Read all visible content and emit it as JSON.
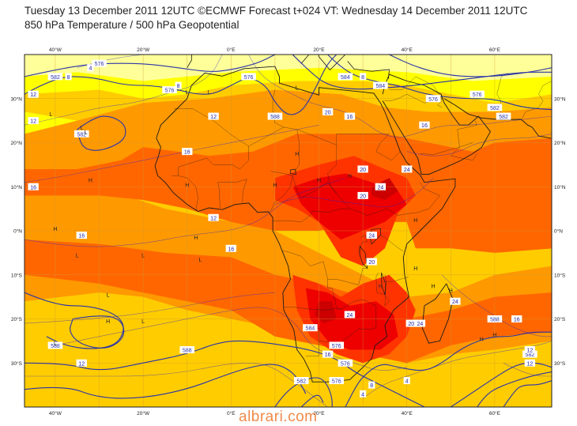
{
  "header": {
    "line1": "Tuesday 13 December 2011 12UTC ©ECMWF Forecast t+024 VT: Wednesday 14 December 2011 12UTC",
    "line2": "850 hPa Temperature / 500 hPa Geopotential"
  },
  "axes": {
    "lon_labels": [
      "40°W",
      "20°W",
      "0°E",
      "20°E",
      "40°E",
      "60°E"
    ],
    "lat_labels": [
      "30°N",
      "20°N",
      "10°N",
      "0°N",
      "10°S",
      "20°S",
      "30°S"
    ]
  },
  "map": {
    "region": "Africa",
    "lon_range": [
      -47,
      73
    ],
    "lat_range": [
      -40,
      40
    ],
    "colors": {
      "temp_pale_yellow": "#ffff99",
      "temp_yellow": "#ffff00",
      "temp_gold": "#ffcc00",
      "temp_orange": "#ff9900",
      "temp_dark_orange": "#ff6600",
      "temp_red_orange": "#ff3300",
      "temp_red": "#ee0000",
      "temp_deep_red": "#cc0000",
      "coastline": "#1a1a1a",
      "grid": "#cc9933",
      "geopotential": "#2a33a8",
      "temperature_label": "#1a1aa0",
      "temperature_contour": "#2222cc"
    },
    "geopotential_labels": [
      "576",
      "582",
      "576",
      "576",
      "582",
      "588",
      "584",
      "584",
      "576",
      "576",
      "582",
      "582",
      "588",
      "588",
      "588",
      "584",
      "576",
      "576",
      "576",
      "582",
      "582"
    ],
    "temperature_labels": [
      "8",
      "4",
      "8",
      "12",
      "12",
      "12",
      "8",
      "16",
      "12",
      "16",
      "16",
      "16",
      "16",
      "20",
      "20",
      "24",
      "24",
      "20",
      "24",
      "24",
      "24",
      "20",
      "16",
      "12",
      "16",
      "12",
      "8",
      "4",
      "4",
      "12",
      "16",
      "20",
      "24"
    ],
    "pressure_labels": [
      "L",
      "L",
      "L",
      "L",
      "L",
      "L",
      "L",
      "L",
      "H",
      "H",
      "H",
      "H",
      "H",
      "H",
      "H",
      "H",
      "H",
      "H",
      "H",
      "H",
      "H",
      "H",
      "L",
      "L",
      "L",
      "H",
      "H",
      "L"
    ]
  },
  "watermark": "albrari.com"
}
